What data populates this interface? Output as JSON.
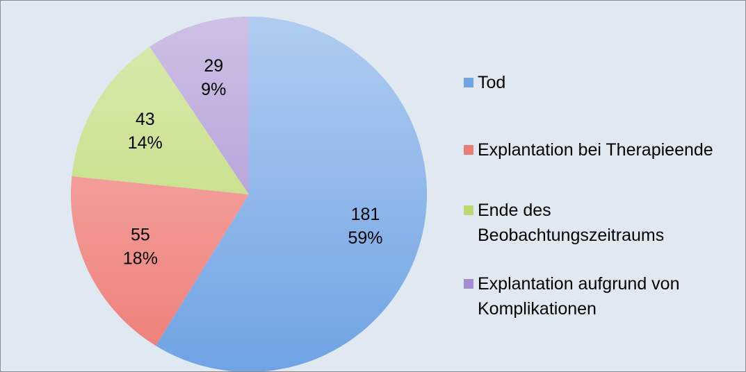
{
  "chart_data": {
    "type": "pie",
    "categories": [
      "Tod",
      "Explantation bei Therapieende",
      "Ende des Beobachtungszeitraums",
      "Explantation aufgrund von Komplikationen"
    ],
    "values": [
      181,
      55,
      43,
      29
    ],
    "percentage_labels": [
      "59%",
      "18%",
      "14%",
      "9%"
    ],
    "colors": [
      "#6fa3e4",
      "#ee7d77",
      "#bbd96f",
      "#a58cd0"
    ],
    "legend": "right"
  }
}
